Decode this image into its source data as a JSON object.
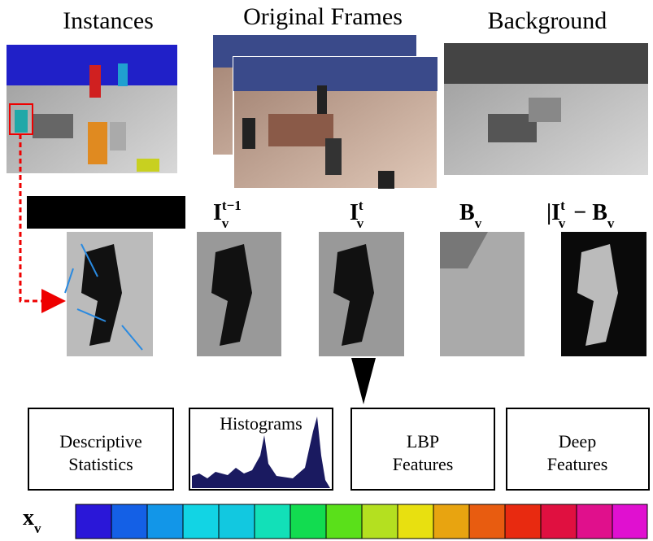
{
  "titles": {
    "instances": "Instances",
    "original": "Original Frames",
    "background": "Background"
  },
  "frame_labels": [
    {
      "base": "I",
      "sub": "v",
      "sup": "t−1"
    },
    {
      "base": "I",
      "sub": "v",
      "sup": "t"
    },
    {
      "base": "B",
      "sub": "v"
    },
    {
      "base": "|I",
      "sub": "v",
      "sup": "t",
      "rest": "− B",
      "rest_sub": "v"
    }
  ],
  "feature_boxes": [
    {
      "lines": [
        "Descriptive",
        "Statistics"
      ]
    },
    {
      "lines": [
        "Histograms"
      ]
    },
    {
      "lines": [
        "LBP",
        "Features"
      ]
    },
    {
      "lines": [
        "Deep",
        "Features"
      ]
    }
  ],
  "vector_label": {
    "base": "x",
    "sub": "v"
  }
}
